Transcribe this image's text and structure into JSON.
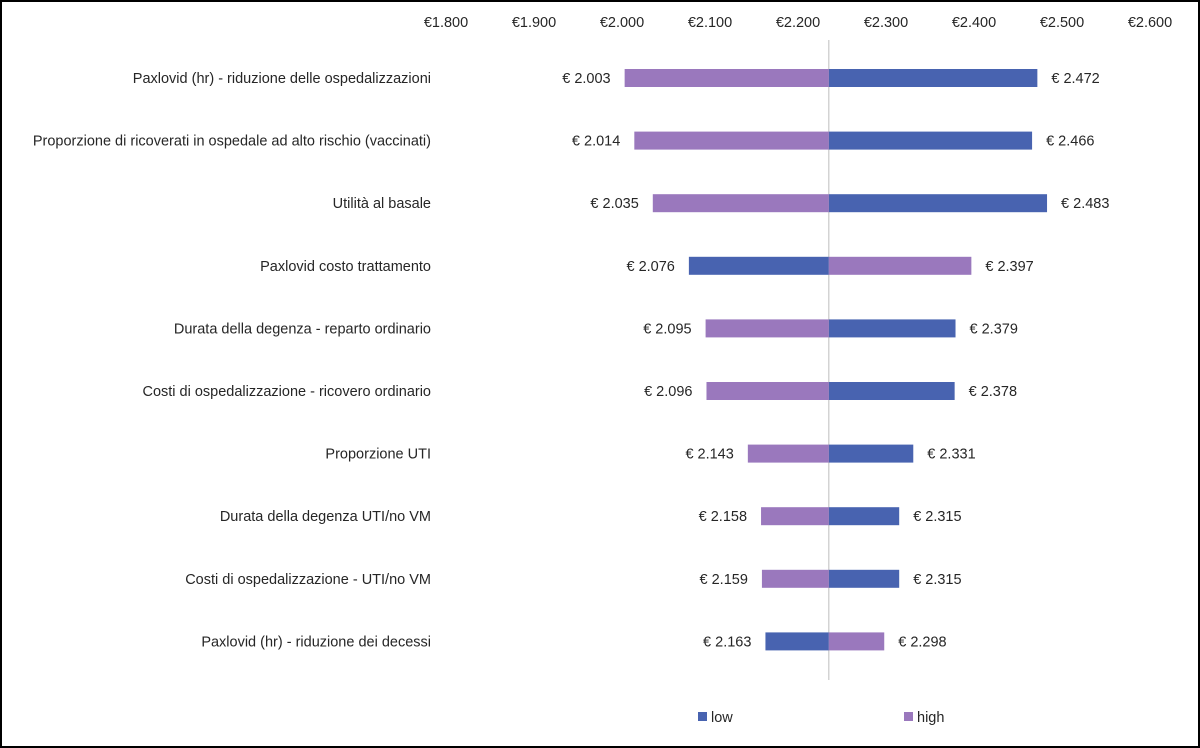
{
  "chart_data": {
    "type": "bar",
    "orientation": "horizontal",
    "subtype": "tornado",
    "baseline": 2235,
    "xlim": [
      1800,
      2600
    ],
    "ticks": [
      1800,
      1900,
      2000,
      2100,
      2200,
      2300,
      2400,
      2500,
      2600
    ],
    "tick_labels": [
      "€1.800",
      "€1.900",
      "€2.000",
      "€2.100",
      "€2.200",
      "€2.300",
      "€2.400",
      "€2.500",
      "€2.600"
    ],
    "x_axis_position": "top",
    "grid": false,
    "legend_position": "bottom",
    "categories": [
      "Paxlovid (hr) - riduzione delle ospedalizzazioni",
      "Proporzione di ricoverati in ospedale ad alto rischio (vaccinati)",
      "Utilità al basale",
      "Paxlovid costo trattamento",
      "Durata della degenza - reparto ordinario",
      "Costi di ospedalizzazione - ricovero ordinario",
      "Proporzione UTI",
      "Durata della degenza UTI/no VM",
      "Costi di ospedalizzazione - UTI/no VM",
      "Paxlovid (hr) - riduzione dei decessi"
    ],
    "series": [
      {
        "name": "low",
        "color": "#4863b0",
        "values": [
          2472,
          2466,
          2483,
          2076,
          2379,
          2378,
          2331,
          2315,
          2315,
          2163
        ],
        "labels": [
          "€ 2.472",
          "€ 2.466",
          "€ 2.483",
          "€ 2.076",
          "€ 2.379",
          "€ 2.378",
          "€ 2.331",
          "€ 2.315",
          "€ 2.315",
          "€ 2.163"
        ]
      },
      {
        "name": "high",
        "color": "#9a78bd",
        "values": [
          2003,
          2014,
          2035,
          2397,
          2095,
          2096,
          2143,
          2158,
          2159,
          2298
        ],
        "labels": [
          "€ 2.003",
          "€ 2.014",
          "€ 2.035",
          "€ 2.397",
          "€ 2.095",
          "€ 2.096",
          "€ 2.143",
          "€ 2.158",
          "€ 2.159",
          "€ 2.298"
        ]
      }
    ]
  }
}
